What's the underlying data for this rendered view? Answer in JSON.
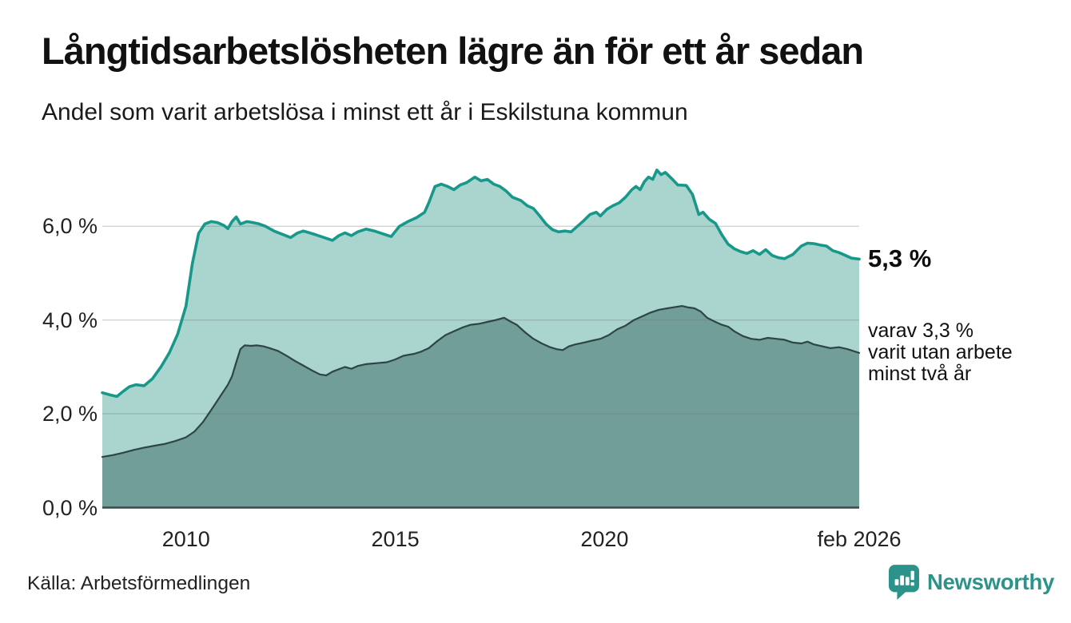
{
  "chart_data": {
    "type": "area",
    "title": "Långtidsarbetslösheten lägre än för ett år sedan",
    "subtitle": "Andel som varit arbetslösa i minst ett år i Eskilstuna kommun",
    "source": "Källa: Arbetsförmedlingen",
    "brand": "Newsworthy",
    "legend_position": "direct-labels-at-line-ends",
    "grid": true,
    "colors": {
      "primary_line": "#18988a",
      "primary_fill": "#aad5ce",
      "secondary_line": "#2e4643",
      "secondary_fill": "#719e99",
      "gridline": "rgba(110,120,120,0.32)",
      "baseline": "#374a47",
      "brand_teal": "#2c938b"
    },
    "x_axis": {
      "min": 2008.0,
      "max": 2026.083,
      "ticks": [
        {
          "value": 2010,
          "label": "2010"
        },
        {
          "value": 2015,
          "label": "2015"
        },
        {
          "value": 2020,
          "label": "2020"
        },
        {
          "value": 2026.083,
          "label": "feb 2026"
        }
      ]
    },
    "y_axis": {
      "min": 0,
      "max": 7.4,
      "unit": "%",
      "ticks": [
        {
          "value": 0,
          "label": "0,0 %"
        },
        {
          "value": 2,
          "label": "2,0 %"
        },
        {
          "value": 4,
          "label": "4,0 %"
        },
        {
          "value": 6,
          "label": "6,0 %"
        }
      ]
    },
    "series": [
      {
        "id": "arbetslosa-minst-ett-ar",
        "name": "Andel som varit arbetslösa i minst ett år",
        "end_value": 5.3,
        "end_label": "5,3 %",
        "points": [
          [
            2008.0,
            2.45
          ],
          [
            2008.2,
            2.4
          ],
          [
            2008.35,
            2.37
          ],
          [
            2008.5,
            2.48
          ],
          [
            2008.65,
            2.58
          ],
          [
            2008.8,
            2.62
          ],
          [
            2009.0,
            2.6
          ],
          [
            2009.2,
            2.75
          ],
          [
            2009.4,
            3.0
          ],
          [
            2009.6,
            3.3
          ],
          [
            2009.8,
            3.7
          ],
          [
            2010.0,
            4.3
          ],
          [
            2010.15,
            5.2
          ],
          [
            2010.3,
            5.85
          ],
          [
            2010.45,
            6.05
          ],
          [
            2010.6,
            6.1
          ],
          [
            2010.75,
            6.08
          ],
          [
            2010.9,
            6.02
          ],
          [
            2011.0,
            5.95
          ],
          [
            2011.1,
            6.1
          ],
          [
            2011.2,
            6.2
          ],
          [
            2011.3,
            6.05
          ],
          [
            2011.45,
            6.1
          ],
          [
            2011.6,
            6.08
          ],
          [
            2011.75,
            6.05
          ],
          [
            2011.9,
            6.0
          ],
          [
            2012.1,
            5.9
          ],
          [
            2012.3,
            5.83
          ],
          [
            2012.5,
            5.76
          ],
          [
            2012.65,
            5.85
          ],
          [
            2012.8,
            5.9
          ],
          [
            2012.95,
            5.86
          ],
          [
            2013.1,
            5.82
          ],
          [
            2013.3,
            5.76
          ],
          [
            2013.5,
            5.7
          ],
          [
            2013.65,
            5.8
          ],
          [
            2013.8,
            5.86
          ],
          [
            2013.95,
            5.8
          ],
          [
            2014.1,
            5.88
          ],
          [
            2014.3,
            5.94
          ],
          [
            2014.5,
            5.9
          ],
          [
            2014.7,
            5.84
          ],
          [
            2014.9,
            5.78
          ],
          [
            2015.1,
            6.0
          ],
          [
            2015.3,
            6.1
          ],
          [
            2015.5,
            6.18
          ],
          [
            2015.7,
            6.3
          ],
          [
            2015.8,
            6.5
          ],
          [
            2015.95,
            6.85
          ],
          [
            2016.1,
            6.9
          ],
          [
            2016.25,
            6.85
          ],
          [
            2016.4,
            6.78
          ],
          [
            2016.55,
            6.88
          ],
          [
            2016.7,
            6.93
          ],
          [
            2016.9,
            7.05
          ],
          [
            2017.05,
            6.97
          ],
          [
            2017.2,
            7.0
          ],
          [
            2017.35,
            6.9
          ],
          [
            2017.5,
            6.85
          ],
          [
            2017.65,
            6.75
          ],
          [
            2017.8,
            6.62
          ],
          [
            2018.0,
            6.55
          ],
          [
            2018.15,
            6.44
          ],
          [
            2018.3,
            6.38
          ],
          [
            2018.45,
            6.22
          ],
          [
            2018.6,
            6.05
          ],
          [
            2018.75,
            5.93
          ],
          [
            2018.9,
            5.88
          ],
          [
            2019.05,
            5.9
          ],
          [
            2019.2,
            5.88
          ],
          [
            2019.35,
            6.0
          ],
          [
            2019.5,
            6.12
          ],
          [
            2019.65,
            6.25
          ],
          [
            2019.8,
            6.3
          ],
          [
            2019.9,
            6.22
          ],
          [
            2020.05,
            6.36
          ],
          [
            2020.2,
            6.44
          ],
          [
            2020.35,
            6.5
          ],
          [
            2020.5,
            6.62
          ],
          [
            2020.65,
            6.78
          ],
          [
            2020.75,
            6.85
          ],
          [
            2020.85,
            6.78
          ],
          [
            2020.95,
            6.95
          ],
          [
            2021.05,
            7.05
          ],
          [
            2021.15,
            7.0
          ],
          [
            2021.25,
            7.2
          ],
          [
            2021.35,
            7.1
          ],
          [
            2021.45,
            7.15
          ],
          [
            2021.6,
            7.02
          ],
          [
            2021.75,
            6.88
          ],
          [
            2021.95,
            6.87
          ],
          [
            2022.1,
            6.68
          ],
          [
            2022.25,
            6.25
          ],
          [
            2022.35,
            6.3
          ],
          [
            2022.5,
            6.15
          ],
          [
            2022.65,
            6.06
          ],
          [
            2022.8,
            5.82
          ],
          [
            2022.95,
            5.62
          ],
          [
            2023.1,
            5.52
          ],
          [
            2023.25,
            5.46
          ],
          [
            2023.4,
            5.42
          ],
          [
            2023.55,
            5.48
          ],
          [
            2023.7,
            5.4
          ],
          [
            2023.85,
            5.5
          ],
          [
            2024.0,
            5.38
          ],
          [
            2024.15,
            5.33
          ],
          [
            2024.3,
            5.31
          ],
          [
            2024.5,
            5.4
          ],
          [
            2024.7,
            5.58
          ],
          [
            2024.85,
            5.64
          ],
          [
            2025.0,
            5.63
          ],
          [
            2025.15,
            5.6
          ],
          [
            2025.3,
            5.58
          ],
          [
            2025.45,
            5.48
          ],
          [
            2025.6,
            5.44
          ],
          [
            2025.75,
            5.38
          ],
          [
            2025.9,
            5.32
          ],
          [
            2026.083,
            5.3
          ]
        ]
      },
      {
        "id": "utan-arbete-minst-tva-ar",
        "name": "varav utan arbete minst två år",
        "end_value": 3.3,
        "end_label_lines": [
          "varav 3,3 %",
          "varit utan arbete",
          "minst två år"
        ],
        "points": [
          [
            2008.0,
            1.08
          ],
          [
            2008.25,
            1.12
          ],
          [
            2008.5,
            1.17
          ],
          [
            2008.75,
            1.23
          ],
          [
            2009.0,
            1.28
          ],
          [
            2009.25,
            1.32
          ],
          [
            2009.5,
            1.36
          ],
          [
            2009.75,
            1.42
          ],
          [
            2010.0,
            1.5
          ],
          [
            2010.2,
            1.62
          ],
          [
            2010.4,
            1.82
          ],
          [
            2010.6,
            2.08
          ],
          [
            2010.8,
            2.35
          ],
          [
            2011.0,
            2.62
          ],
          [
            2011.1,
            2.8
          ],
          [
            2011.2,
            3.1
          ],
          [
            2011.3,
            3.38
          ],
          [
            2011.4,
            3.46
          ],
          [
            2011.55,
            3.45
          ],
          [
            2011.7,
            3.46
          ],
          [
            2011.85,
            3.44
          ],
          [
            2012.0,
            3.4
          ],
          [
            2012.2,
            3.34
          ],
          [
            2012.4,
            3.24
          ],
          [
            2012.6,
            3.13
          ],
          [
            2012.8,
            3.03
          ],
          [
            2013.0,
            2.93
          ],
          [
            2013.2,
            2.84
          ],
          [
            2013.35,
            2.82
          ],
          [
            2013.5,
            2.9
          ],
          [
            2013.65,
            2.95
          ],
          [
            2013.8,
            3.0
          ],
          [
            2013.95,
            2.96
          ],
          [
            2014.1,
            3.02
          ],
          [
            2014.3,
            3.06
          ],
          [
            2014.55,
            3.08
          ],
          [
            2014.8,
            3.1
          ],
          [
            2015.0,
            3.16
          ],
          [
            2015.2,
            3.24
          ],
          [
            2015.45,
            3.28
          ],
          [
            2015.6,
            3.32
          ],
          [
            2015.8,
            3.4
          ],
          [
            2016.0,
            3.55
          ],
          [
            2016.2,
            3.68
          ],
          [
            2016.4,
            3.76
          ],
          [
            2016.6,
            3.84
          ],
          [
            2016.8,
            3.9
          ],
          [
            2017.0,
            3.92
          ],
          [
            2017.2,
            3.96
          ],
          [
            2017.4,
            4.0
          ],
          [
            2017.6,
            4.05
          ],
          [
            2017.75,
            3.97
          ],
          [
            2017.9,
            3.9
          ],
          [
            2018.1,
            3.74
          ],
          [
            2018.3,
            3.6
          ],
          [
            2018.5,
            3.5
          ],
          [
            2018.7,
            3.42
          ],
          [
            2018.85,
            3.38
          ],
          [
            2019.0,
            3.36
          ],
          [
            2019.15,
            3.44
          ],
          [
            2019.3,
            3.48
          ],
          [
            2019.5,
            3.52
          ],
          [
            2019.7,
            3.56
          ],
          [
            2019.9,
            3.6
          ],
          [
            2020.1,
            3.68
          ],
          [
            2020.3,
            3.8
          ],
          [
            2020.5,
            3.88
          ],
          [
            2020.7,
            4.0
          ],
          [
            2020.9,
            4.08
          ],
          [
            2021.1,
            4.16
          ],
          [
            2021.3,
            4.22
          ],
          [
            2021.5,
            4.25
          ],
          [
            2021.7,
            4.28
          ],
          [
            2021.85,
            4.3
          ],
          [
            2022.0,
            4.27
          ],
          [
            2022.15,
            4.25
          ],
          [
            2022.3,
            4.18
          ],
          [
            2022.45,
            4.05
          ],
          [
            2022.6,
            3.98
          ],
          [
            2022.8,
            3.9
          ],
          [
            2022.95,
            3.86
          ],
          [
            2023.1,
            3.76
          ],
          [
            2023.3,
            3.66
          ],
          [
            2023.5,
            3.6
          ],
          [
            2023.7,
            3.58
          ],
          [
            2023.9,
            3.62
          ],
          [
            2024.1,
            3.6
          ],
          [
            2024.3,
            3.58
          ],
          [
            2024.5,
            3.52
          ],
          [
            2024.7,
            3.5
          ],
          [
            2024.85,
            3.54
          ],
          [
            2025.0,
            3.48
          ],
          [
            2025.2,
            3.44
          ],
          [
            2025.4,
            3.4
          ],
          [
            2025.6,
            3.42
          ],
          [
            2025.8,
            3.38
          ],
          [
            2026.083,
            3.3
          ]
        ]
      }
    ]
  }
}
